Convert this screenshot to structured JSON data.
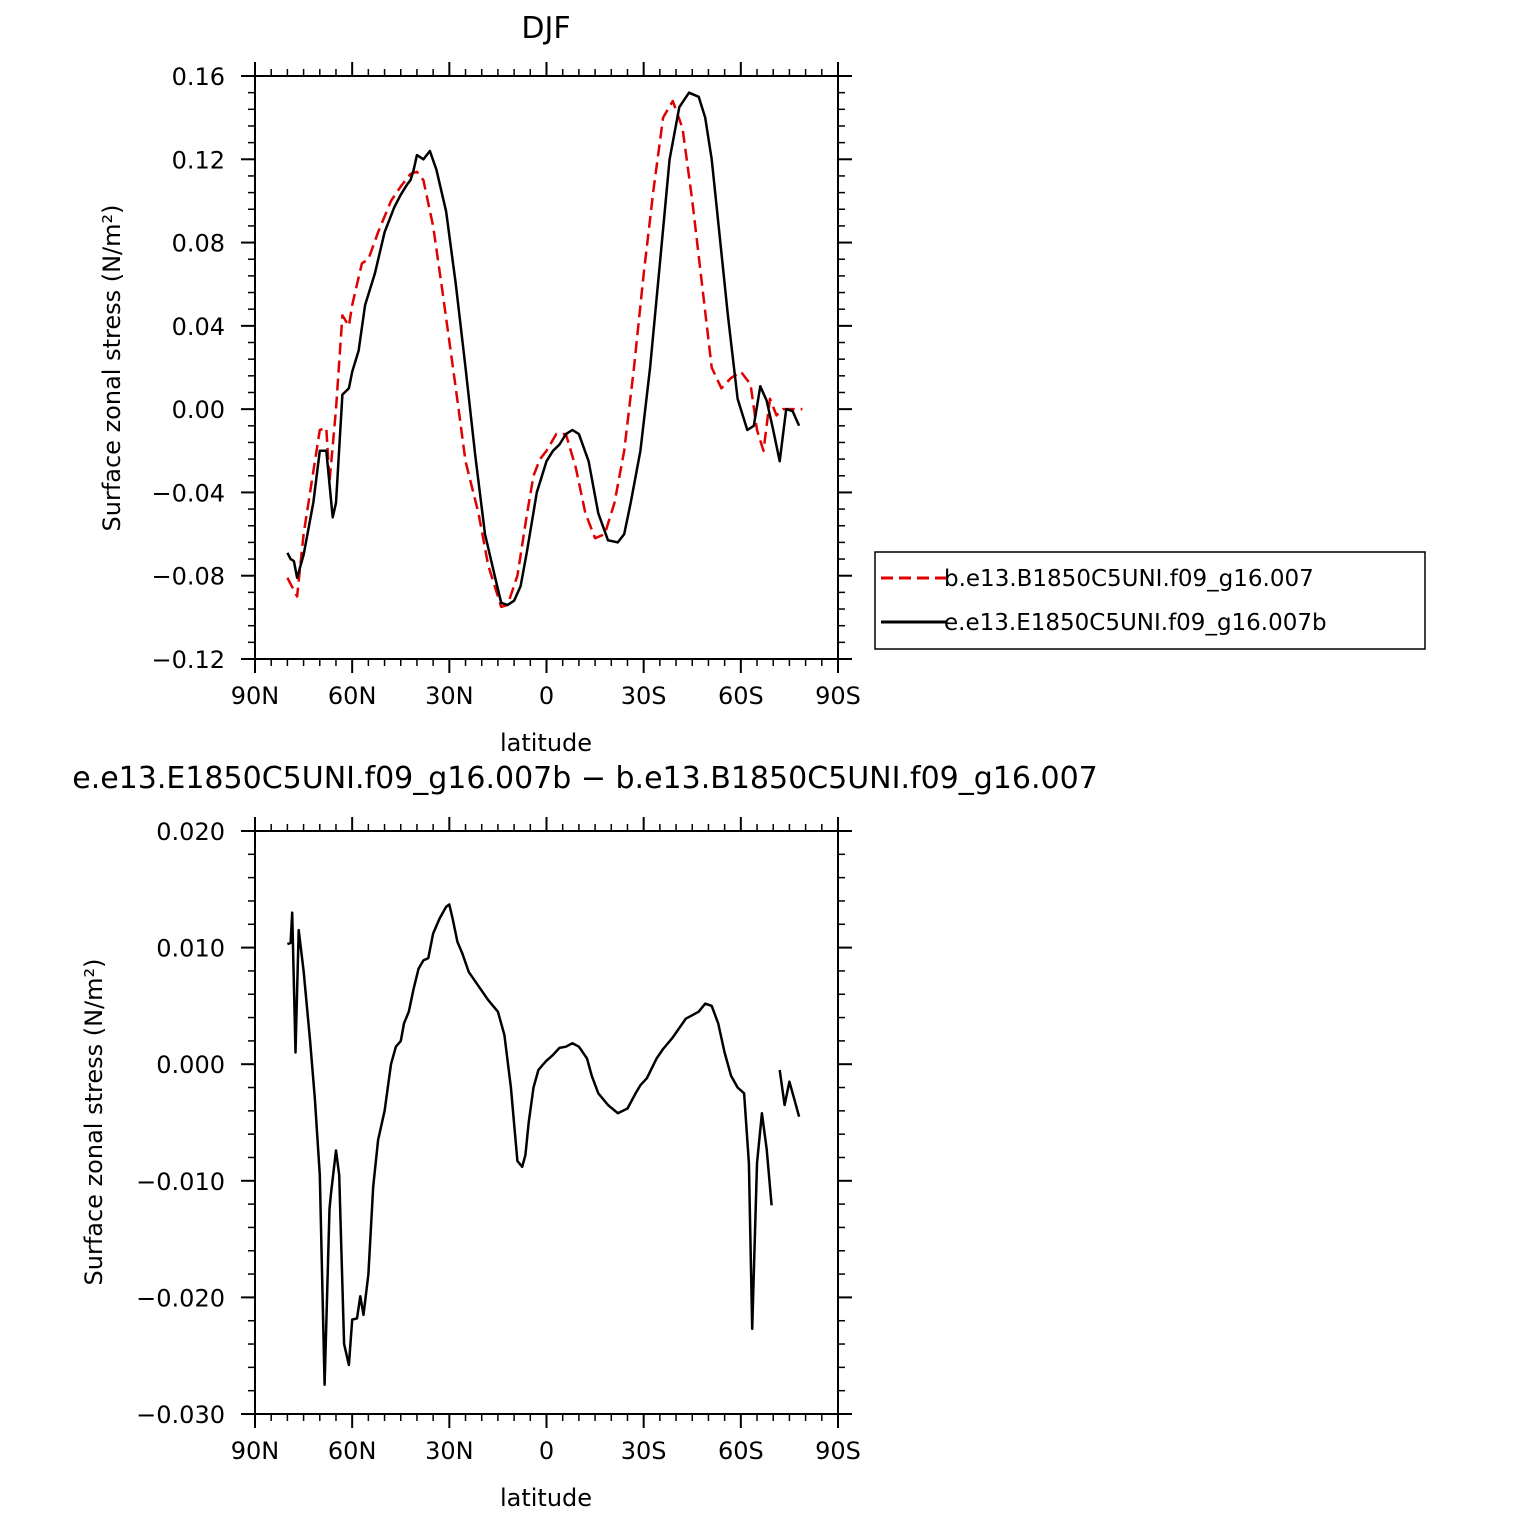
{
  "chart_data": [
    {
      "type": "line",
      "title": "DJF",
      "xlabel": "latitude",
      "ylabel": "Surface zonal stress (N/m²)",
      "xlim": [
        90,
        -90
      ],
      "ylim": [
        -0.12,
        0.16
      ],
      "x_ticks": [
        90,
        60,
        30,
        0,
        -30,
        -60,
        -90
      ],
      "x_tick_labels": [
        "90N",
        "60N",
        "30N",
        "0",
        "30S",
        "60S",
        "90S"
      ],
      "y_ticks": [
        -0.12,
        -0.08,
        -0.04,
        0.0,
        0.04,
        0.08,
        0.12,
        0.16
      ],
      "y_tick_labels": [
        "−0.12",
        "−0.08",
        "−0.04",
        "0.00",
        "0.04",
        "0.08",
        "0.12",
        "0.16"
      ],
      "legend": {
        "placement": "right",
        "entries": [
          "b.e13.B1850C5UNI.f09_g16.007",
          "e.e13.E1850C5UNI.f09_g16.007b"
        ]
      },
      "series": [
        {
          "name": "b.e13.B1850C5UNI.f09_g16.007",
          "color": "#e00000",
          "dash": true,
          "x": [
            80,
            77,
            75,
            72,
            70,
            68,
            67,
            65,
            63,
            61,
            60,
            57,
            55,
            52,
            48,
            45,
            42,
            40,
            38,
            35,
            32,
            28,
            25,
            21,
            18,
            14,
            12,
            9,
            6,
            4,
            2,
            0,
            -3,
            -6,
            -9,
            -12,
            -15,
            -18,
            -21,
            -24,
            -27,
            -30,
            -33,
            -36,
            -39,
            -42,
            -45,
            -48,
            -51,
            -54,
            -57,
            -60,
            -63,
            -65,
            -67,
            -69,
            -71,
            -73,
            -75,
            -77,
            -79
          ],
          "y": [
            -0.081,
            -0.09,
            -0.06,
            -0.03,
            -0.01,
            -0.009,
            -0.035,
            0.0,
            0.045,
            0.04,
            0.05,
            0.07,
            0.072,
            0.085,
            0.1,
            0.107,
            0.113,
            0.114,
            0.11,
            0.088,
            0.055,
            0.01,
            -0.025,
            -0.05,
            -0.075,
            -0.095,
            -0.094,
            -0.08,
            -0.05,
            -0.032,
            -0.024,
            -0.02,
            -0.012,
            -0.012,
            -0.028,
            -0.05,
            -0.062,
            -0.06,
            -0.045,
            -0.02,
            0.02,
            0.065,
            0.105,
            0.14,
            0.148,
            0.135,
            0.1,
            0.06,
            0.02,
            0.01,
            0.015,
            0.018,
            0.012,
            -0.01,
            -0.02,
            0.005,
            -0.003,
            0.0,
            0.0,
            0.0,
            0.0
          ]
        },
        {
          "name": "e.e13.E1850C5UNI.f09_g16.007b",
          "color": "#000000",
          "dash": false,
          "x": [
            80,
            79,
            78,
            77,
            75,
            72,
            70,
            68,
            66,
            65,
            63,
            61,
            60,
            58,
            56,
            53,
            50,
            47,
            45,
            43,
            42,
            41,
            40,
            38,
            36,
            34,
            31,
            28,
            25,
            22,
            19,
            16,
            14,
            12,
            10,
            8,
            6,
            3,
            0,
            -2,
            -4,
            -6,
            -8,
            -10,
            -13,
            -16,
            -19,
            -22,
            -24,
            -26,
            -29,
            -32,
            -35,
            -38,
            -41,
            -44,
            -47,
            -49,
            -51,
            -53,
            -56,
            -59,
            -62,
            -64,
            -66,
            -68,
            -70,
            -72,
            -74,
            -76,
            -78
          ],
          "y": [
            -0.069,
            -0.072,
            -0.073,
            -0.081,
            -0.07,
            -0.045,
            -0.02,
            -0.02,
            -0.052,
            -0.045,
            0.007,
            0.01,
            0.018,
            0.028,
            0.05,
            0.065,
            0.085,
            0.097,
            0.103,
            0.108,
            0.11,
            0.115,
            0.122,
            0.12,
            0.124,
            0.115,
            0.095,
            0.06,
            0.02,
            -0.022,
            -0.06,
            -0.08,
            -0.093,
            -0.094,
            -0.092,
            -0.085,
            -0.068,
            -0.04,
            -0.025,
            -0.02,
            -0.017,
            -0.012,
            -0.01,
            -0.012,
            -0.025,
            -0.05,
            -0.063,
            -0.064,
            -0.06,
            -0.045,
            -0.02,
            0.02,
            0.07,
            0.12,
            0.145,
            0.152,
            0.15,
            0.14,
            0.12,
            0.09,
            0.045,
            0.005,
            -0.01,
            -0.008,
            0.011,
            0.004,
            -0.01,
            -0.025,
            0.0,
            -0.001,
            -0.008
          ]
        }
      ]
    },
    {
      "type": "line",
      "title": "e.e13.E1850C5UNI.f09_g16.007b − b.e13.B1850C5UNI.f09_g16.007",
      "xlabel": "latitude",
      "ylabel": "Surface zonal stress (N/m²)",
      "xlim": [
        90,
        -90
      ],
      "ylim": [
        -0.03,
        0.02
      ],
      "x_ticks": [
        90,
        60,
        30,
        0,
        -30,
        -60,
        -90
      ],
      "x_tick_labels": [
        "90N",
        "60N",
        "30N",
        "0",
        "30S",
        "60S",
        "90S"
      ],
      "y_ticks": [
        -0.03,
        -0.02,
        -0.01,
        0.0,
        0.01,
        0.02
      ],
      "y_tick_labels": [
        "−0.030",
        "−0.020",
        "−0.010",
        "0.000",
        "0.010",
        "0.020"
      ],
      "series": [
        {
          "color": "#000000",
          "dash": false,
          "segments": [
            {
              "x": [
                80,
                79,
                78.5,
                77.5,
                76.5,
                75,
                73,
                71.5,
                70,
                68.5,
                67,
                66.5,
                65,
                64,
                62.5,
                61,
                60,
                58.5,
                57.5,
                56.5,
                55,
                53.5,
                52,
                50,
                48,
                46.5,
                45,
                44,
                42.5,
                41,
                39.5,
                38,
                36.5,
                35,
                33,
                31,
                30,
                29,
                27.5,
                26,
                24,
                21,
                18,
                15,
                13,
                11,
                9,
                7.5,
                6.5,
                5.5,
                4,
                2.5,
                1,
                0,
                -2,
                -4,
                -6,
                -8,
                -10,
                -12.5,
                -14,
                -16,
                -19,
                -22,
                -25,
                -27.5,
                -29,
                -31,
                -34,
                -36,
                -39,
                -43,
                -45,
                -47,
                -49,
                -51,
                -53,
                -55,
                -57,
                -59,
                -61,
                -62.5,
                -63.5,
                -65,
                -66.5,
                -68,
                -69.5
              ],
              "y": [
                0.0103,
                0.0104,
                0.013,
                0.001,
                0.0115,
                0.008,
                0.002,
                -0.003,
                -0.0095,
                -0.0275,
                -0.0124,
                -0.011,
                -0.0074,
                -0.0095,
                -0.024,
                -0.0258,
                -0.0219,
                -0.0218,
                -0.0199,
                -0.0215,
                -0.018,
                -0.0105,
                -0.0065,
                -0.004,
                0.0,
                0.0015,
                0.002,
                0.0035,
                0.0045,
                0.0065,
                0.0082,
                0.0089,
                0.0091,
                0.0112,
                0.0125,
                0.0135,
                0.0137,
                0.0125,
                0.0105,
                0.0095,
                0.0079,
                0.0067,
                0.0055,
                0.0045,
                0.0025,
                -0.002,
                -0.0083,
                -0.0088,
                -0.0078,
                -0.005,
                -0.002,
                -0.0005,
                0.0,
                0.0003,
                0.0008,
                0.0014,
                0.0015,
                0.0018,
                0.0015,
                0.0005,
                -0.001,
                -0.0025,
                -0.0035,
                -0.0042,
                -0.0038,
                -0.0025,
                -0.0018,
                -0.0012,
                0.0005,
                0.0013,
                0.0023,
                0.0039,
                0.0042,
                0.0045,
                0.0052,
                0.005,
                0.0035,
                0.001,
                -0.001,
                -0.002,
                -0.0025,
                -0.0085,
                -0.0227,
                -0.0085,
                -0.0042,
                -0.0073,
                -0.0121
              ]
            },
            {
              "x": [
                -72,
                -73.5,
                -75,
                -76.5,
                -78
              ],
              "y": [
                -0.0005,
                -0.0035,
                -0.0015,
                -0.003,
                -0.0045
              ]
            }
          ]
        }
      ]
    }
  ]
}
